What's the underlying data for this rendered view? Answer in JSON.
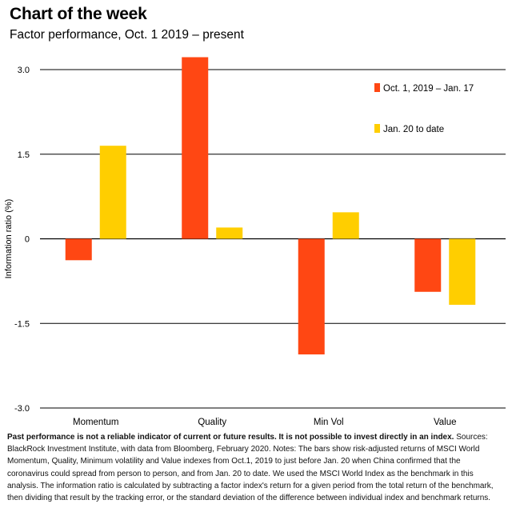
{
  "header": {
    "title": "Chart of the week",
    "subtitle": "Factor performance, Oct. 1 2019 – present"
  },
  "chart_data": {
    "type": "bar",
    "categories": [
      "Momentum",
      "Quality",
      "Min Vol",
      "Value"
    ],
    "series": [
      {
        "name": "Oct. 1, 2019 – Jan. 17",
        "color": "#ff4713",
        "values": [
          -0.38,
          3.22,
          -2.05,
          -0.94
        ]
      },
      {
        "name": "Jan. 20 to date",
        "color": "#ffce00",
        "values": [
          1.65,
          0.2,
          0.47,
          -1.17
        ]
      }
    ],
    "ylabel": "Information ratio (%)",
    "ylim": [
      -3.0,
      3.0
    ],
    "yticks": [
      3.0,
      1.5,
      0,
      -1.5,
      -3.0
    ],
    "ytick_labels": [
      "3.0",
      "1.5",
      "0",
      "-1.5",
      "-3.0"
    ],
    "grid": true,
    "legend_position": "top-right"
  },
  "footnote": {
    "bold": "Past performance is not a reliable indicator of current or future results. It is not possible to invest directly in an index.",
    "text": " Sources: BlackRock Investment Institute, with data from Bloomberg, February 2020. Notes: The bars show risk-adjusted returns of MSCI World Momentum, Quality, Minimum volatility and Value indexes from Oct.1, 2019 to just before Jan. 20 when China confirmed that the coronavirus could spread from person to person, and from Jan. 20 to date. We used the MSCI World Index as the benchmark in this analysis. The information ratio is calculated by subtracting a factor index's return for a given period from the total return of the benchmark, then dividing that result by the tracking error, or the standard deviation of the difference between individual index and benchmark returns."
  }
}
